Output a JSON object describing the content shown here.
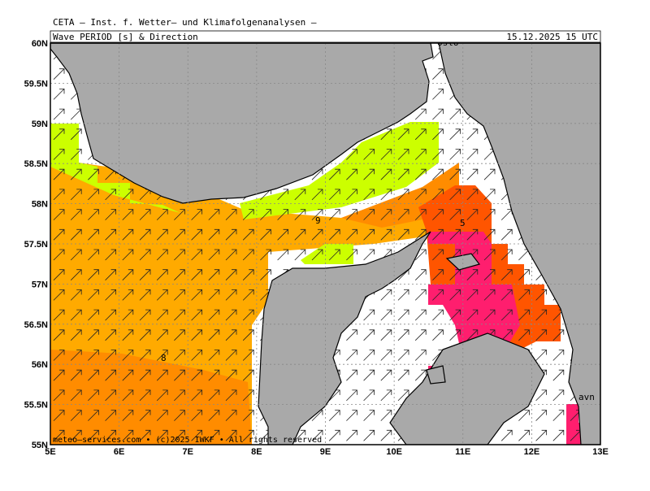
{
  "header": {
    "line1": "CETA – Inst. f. Wetter– und Klimafolgenanalysen –",
    "parameter": "Wave PERIOD [s] & Direction",
    "datetime": "15.12.2025 15 UTC"
  },
  "map": {
    "xticks": [
      {
        "value": 5,
        "label": "5E"
      },
      {
        "value": 6,
        "label": "6E"
      },
      {
        "value": 7,
        "label": "7E"
      },
      {
        "value": 8,
        "label": "8E"
      },
      {
        "value": 9,
        "label": "9E"
      },
      {
        "value": 10,
        "label": "10E"
      },
      {
        "value": 11,
        "label": "11E"
      },
      {
        "value": 12,
        "label": "12E"
      },
      {
        "value": 13,
        "label": "13E"
      }
    ],
    "yticks": [
      {
        "value": 55,
        "label": "55N"
      },
      {
        "value": 55.5,
        "label": "55.5N"
      },
      {
        "value": 56,
        "label": "56N"
      },
      {
        "value": 56.5,
        "label": "56.5N"
      },
      {
        "value": 57,
        "label": "57N"
      },
      {
        "value": 57.5,
        "label": "57.5N"
      },
      {
        "value": 58,
        "label": "58N"
      },
      {
        "value": 58.5,
        "label": "58.5N"
      },
      {
        "value": 59,
        "label": "59N"
      },
      {
        "value": 59.5,
        "label": "59.5N"
      },
      {
        "value": 60,
        "label": "60N"
      }
    ],
    "xlim": [
      5,
      13
    ],
    "ylim": [
      55,
      60
    ],
    "contour_labels": [
      "9",
      "5",
      "8"
    ],
    "places": [
      "Oslo",
      "avn"
    ],
    "copyright": "meteo–services.com • (c)2025 IWKF • All rights reserved"
  }
}
